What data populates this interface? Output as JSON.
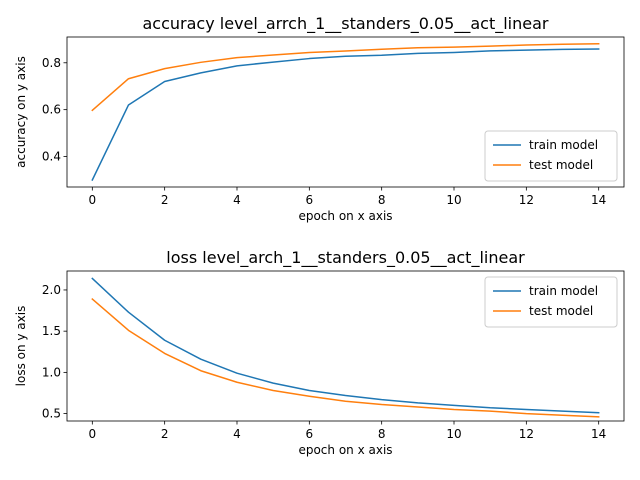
{
  "chart_data": [
    {
      "type": "line",
      "title": "accuracy level_arrch_1__standers_0.05__act_linear",
      "xlabel": "epoch on x axis",
      "ylabel": "accuracy on y axis",
      "xlim": [
        -0.7,
        14.7
      ],
      "ylim": [
        0.27,
        0.91
      ],
      "xticks": [
        0,
        2,
        4,
        6,
        8,
        10,
        12,
        14
      ],
      "xtick_labels": [
        "0",
        "2",
        "4",
        "6",
        "8",
        "10",
        "12",
        "14"
      ],
      "yticks": [
        0.4,
        0.6,
        0.8
      ],
      "ytick_labels": [
        "0.4",
        "0.6",
        "0.8"
      ],
      "grid": false,
      "legend": "lower-right",
      "x": [
        0,
        1,
        2,
        3,
        4,
        5,
        6,
        7,
        8,
        9,
        10,
        11,
        12,
        13,
        14
      ],
      "series": [
        {
          "name": "train model",
          "color": "#1f77b4",
          "values": [
            0.3,
            0.62,
            0.72,
            0.757,
            0.787,
            0.803,
            0.818,
            0.828,
            0.832,
            0.84,
            0.844,
            0.851,
            0.854,
            0.857,
            0.859
          ]
        },
        {
          "name": "test model",
          "color": "#ff7f0e",
          "values": [
            0.597,
            0.732,
            0.775,
            0.802,
            0.822,
            0.833,
            0.844,
            0.85,
            0.858,
            0.864,
            0.867,
            0.871,
            0.876,
            0.879,
            0.881
          ]
        }
      ]
    },
    {
      "type": "line",
      "title": "loss level_arch_1__standers_0.05__act_linear",
      "xlabel": "epoch on x axis",
      "ylabel": "loss on y axis",
      "xlim": [
        -0.7,
        14.7
      ],
      "ylim": [
        0.41,
        2.23
      ],
      "xticks": [
        0,
        2,
        4,
        6,
        8,
        10,
        12,
        14
      ],
      "xtick_labels": [
        "0",
        "2",
        "4",
        "6",
        "8",
        "10",
        "12",
        "14"
      ],
      "yticks": [
        0.5,
        1.0,
        1.5,
        2.0
      ],
      "ytick_labels": [
        "0.5",
        "1.0",
        "1.5",
        "2.0"
      ],
      "grid": false,
      "legend": "upper-right",
      "x": [
        0,
        1,
        2,
        3,
        4,
        5,
        6,
        7,
        8,
        9,
        10,
        11,
        12,
        13,
        14
      ],
      "series": [
        {
          "name": "train model",
          "color": "#1f77b4",
          "values": [
            2.14,
            1.73,
            1.39,
            1.16,
            0.99,
            0.87,
            0.78,
            0.72,
            0.67,
            0.63,
            0.6,
            0.57,
            0.55,
            0.53,
            0.51
          ]
        },
        {
          "name": "test model",
          "color": "#ff7f0e",
          "values": [
            1.89,
            1.51,
            1.23,
            1.02,
            0.88,
            0.78,
            0.71,
            0.65,
            0.61,
            0.58,
            0.55,
            0.53,
            0.5,
            0.48,
            0.46
          ]
        }
      ]
    }
  ]
}
